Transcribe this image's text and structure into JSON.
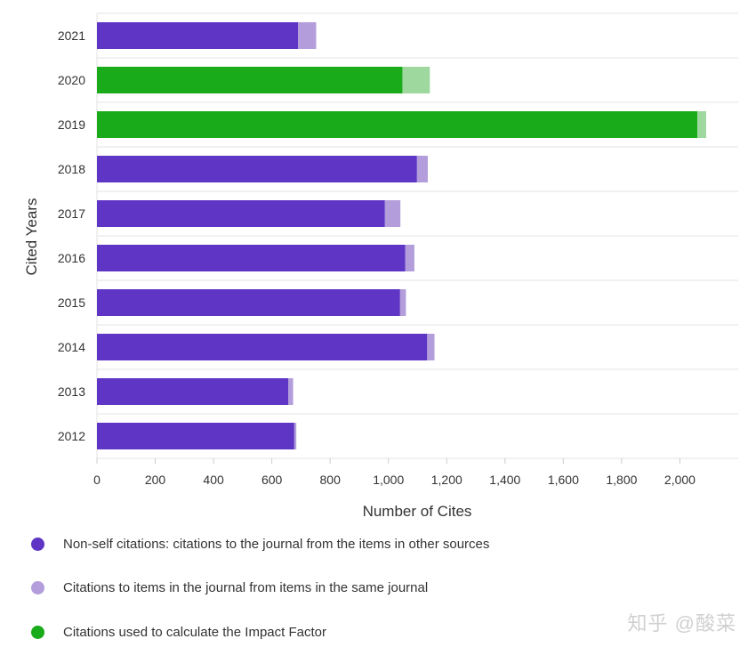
{
  "chart_data": {
    "type": "bar",
    "orientation": "horizontal",
    "stacked": true,
    "categories": [
      "2021",
      "2020",
      "2019",
      "2018",
      "2017",
      "2016",
      "2015",
      "2014",
      "2013",
      "2012"
    ],
    "series": [
      {
        "name": "Non-self citations: citations to the journal from the items in other sources",
        "key": "nonself",
        "values": [
          690,
          1048,
          2060,
          1098,
          988,
          1058,
          1040,
          1133,
          656,
          677
        ]
      },
      {
        "name": "Citations to items in the journal from items in the same journal",
        "key": "self",
        "values": [
          62,
          94,
          30,
          37,
          53,
          31,
          20,
          25,
          17,
          7
        ]
      }
    ],
    "impact_factor_years": [
      "2020",
      "2019"
    ],
    "xlabel": "Number of Cites",
    "ylabel": "Cited Years",
    "xlim": [
      0,
      2200
    ],
    "xticks": [
      0,
      200,
      400,
      600,
      800,
      1000,
      1200,
      1400,
      1600,
      1800,
      2000
    ],
    "xtick_labels": [
      "0",
      "200",
      "400",
      "600",
      "800",
      "1,000",
      "1,200",
      "1,400",
      "1,600",
      "1,800",
      "2,000"
    ],
    "grid": true
  },
  "colors": {
    "nonself": "#5e35c4",
    "self": "#b39ddb",
    "if_main": "#1aab1a",
    "if_light": "#9ed89e",
    "grid": "#e3e3e3"
  },
  "legend": [
    {
      "label": "Non-self citations: citations to the journal from the items in other sources",
      "color": "#5e35c4"
    },
    {
      "label": "Citations to items in the journal from items in the same journal",
      "color": "#b39ddb"
    },
    {
      "label": "Citations used to calculate the Impact Factor",
      "color": "#1aab1a"
    }
  ],
  "watermark": "知乎 @酸菜"
}
